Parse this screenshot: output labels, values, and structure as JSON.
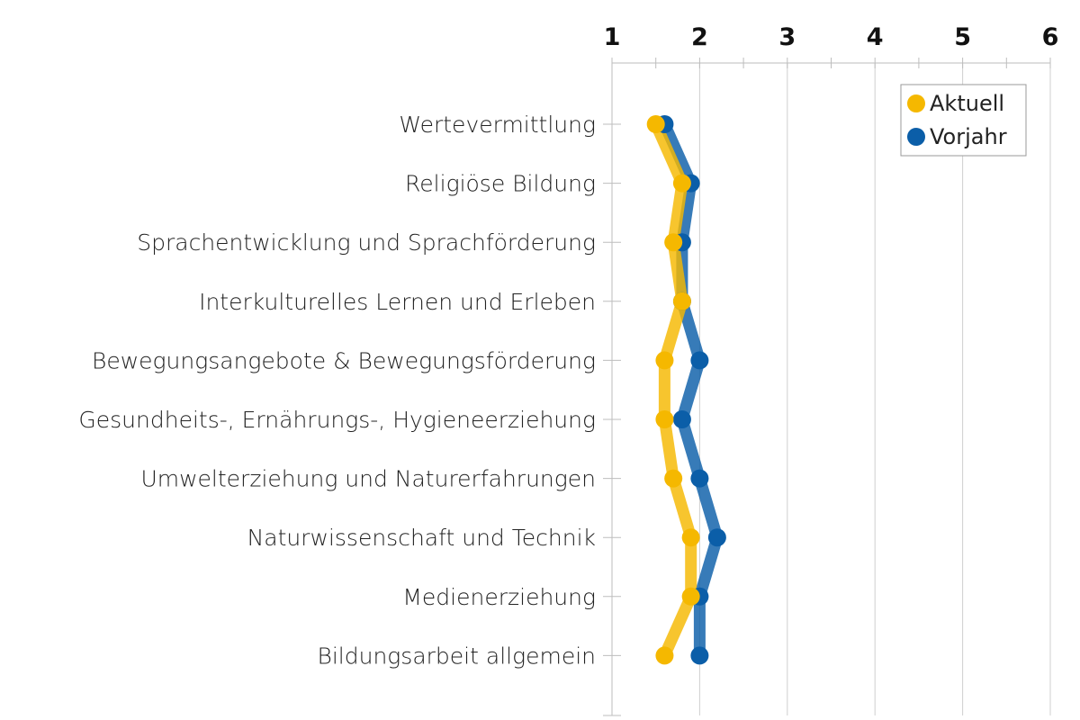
{
  "chart_data": {
    "type": "line",
    "orientation": "horizontal",
    "categories": [
      "Wertevermittlung",
      "Religiöse Bildung",
      "Sprachentwicklung und Sprachförderung",
      "Interkulturelles Lernen und Erleben",
      "Bewegungsangebote & Bewegungsförderung",
      "Gesundheits-, Ernährungs-, Hygieneerziehung",
      "Umwelterziehung und Naturerfahrungen",
      "Naturwissenschaft und Technik",
      "Medienerziehung",
      "Bildungsarbeit allgemein"
    ],
    "series": [
      {
        "name": "Aktuell",
        "color": "#f5b800",
        "values": [
          1.5,
          1.8,
          1.7,
          1.8,
          1.6,
          1.6,
          1.7,
          1.9,
          1.9,
          1.6
        ]
      },
      {
        "name": "Vorjahr",
        "color": "#0b5ea8",
        "values": [
          1.6,
          1.9,
          1.8,
          1.8,
          2.0,
          1.8,
          2.0,
          2.2,
          2.0,
          2.0
        ]
      }
    ],
    "axis": {
      "range": [
        1,
        6
      ],
      "ticks": [
        "1",
        "2",
        "3",
        "4",
        "5",
        "6"
      ],
      "position": "top"
    },
    "grid": true,
    "legend_position": "top-right"
  }
}
